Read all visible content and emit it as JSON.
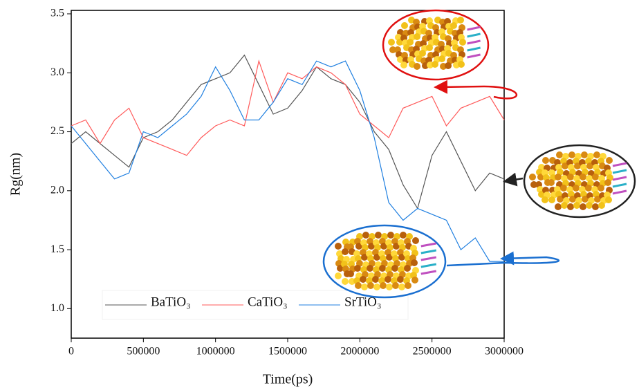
{
  "chart_data": {
    "type": "line",
    "x_label": "Time(ps)",
    "y_label": "Rg(nm)",
    "x": [
      0,
      100000,
      200000,
      300000,
      400000,
      500000,
      600000,
      700000,
      800000,
      900000,
      1000000,
      1100000,
      1200000,
      1300000,
      1400000,
      1500000,
      1600000,
      1700000,
      1800000,
      1900000,
      2000000,
      2100000,
      2200000,
      2300000,
      2400000,
      2500000,
      2600000,
      2700000,
      2800000,
      2900000,
      3000000
    ],
    "series": [
      {
        "name": "BaTiO₃",
        "color": "#555555",
        "values": [
          2.4,
          2.5,
          2.4,
          2.3,
          2.2,
          2.45,
          2.5,
          2.6,
          2.75,
          2.9,
          2.95,
          3.0,
          3.15,
          2.9,
          2.65,
          2.7,
          2.85,
          3.05,
          2.95,
          2.9,
          2.75,
          2.5,
          2.35,
          2.05,
          1.85,
          2.3,
          2.5,
          2.25,
          2.0,
          2.15,
          2.1
        ]
      },
      {
        "name": "CaTiO₃",
        "color": "#ff5a5a",
        "values": [
          2.55,
          2.6,
          2.4,
          2.6,
          2.7,
          2.45,
          2.4,
          2.35,
          2.3,
          2.45,
          2.55,
          2.6,
          2.55,
          3.1,
          2.75,
          3.0,
          2.95,
          3.05,
          3.0,
          2.9,
          2.65,
          2.55,
          2.45,
          2.7,
          2.75,
          2.8,
          2.55,
          2.7,
          2.75,
          2.8,
          2.6
        ]
      },
      {
        "name": "SrTiO₃",
        "color": "#1f7fe0",
        "values": [
          2.55,
          2.4,
          2.25,
          2.1,
          2.15,
          2.5,
          2.45,
          2.55,
          2.65,
          2.8,
          3.05,
          2.85,
          2.6,
          2.6,
          2.75,
          2.95,
          2.9,
          3.1,
          3.05,
          3.1,
          2.85,
          2.45,
          1.9,
          1.75,
          1.85,
          1.8,
          1.75,
          1.5,
          1.6,
          1.4,
          1.4
        ]
      }
    ],
    "xlim": [
      0,
      3000000
    ],
    "xticks": [
      0,
      500000,
      1000000,
      1500000,
      2000000,
      2500000,
      3000000
    ],
    "ylim": [
      0.75,
      3.5
    ],
    "yticks": [
      {
        "value": 1,
        "label": "1.0"
      },
      1.5,
      {
        "value": 2,
        "label": "2.0"
      },
      2.5,
      {
        "value": 3,
        "label": "3.0"
      },
      3.5
    ],
    "legend": "lower left"
  }
}
